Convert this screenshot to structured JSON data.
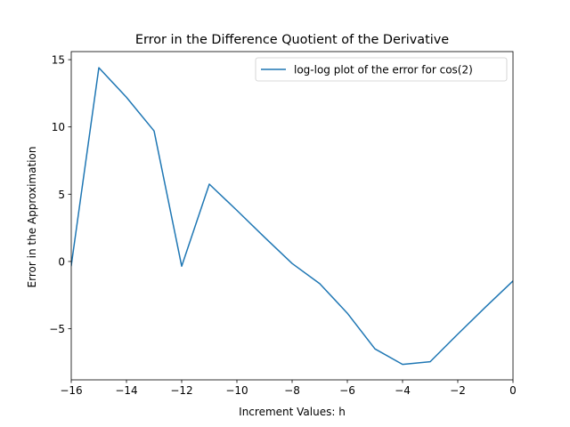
{
  "chart_data": {
    "type": "line",
    "title": "Error in the Difference Quotient of the Derivative",
    "xlabel": "Increment Values: h",
    "ylabel": "Error in the Approximation",
    "xlim": [
      -16,
      0
    ],
    "ylim": [
      -8.8,
      15.6
    ],
    "xticks": [
      -16,
      -14,
      -12,
      -10,
      -8,
      -6,
      -4,
      -2,
      0
    ],
    "xtick_labels": [
      "−16",
      "−14",
      "−12",
      "−10",
      "−8",
      "−6",
      "−4",
      "−2",
      "0"
    ],
    "yticks": [
      -5,
      0,
      5,
      10,
      15
    ],
    "ytick_labels": [
      "−5",
      "0",
      "5",
      "10",
      "15"
    ],
    "grid": false,
    "legend_position": "upper right",
    "series": [
      {
        "name": "log-log plot of the error for cos(2)",
        "color": "#1f77b4",
        "x": [
          -16,
          -15,
          -14,
          -13,
          -12,
          -11,
          -10,
          -9,
          -8,
          -7,
          -6,
          -5,
          -4,
          -3,
          -2,
          -1,
          0
        ],
        "y": [
          -0.3,
          14.4,
          12.2,
          9.7,
          -0.35,
          5.75,
          3.8,
          1.8,
          -0.15,
          -1.65,
          -3.85,
          -6.5,
          -7.65,
          -7.45,
          -5.4,
          -3.4,
          -1.45
        ]
      }
    ]
  }
}
